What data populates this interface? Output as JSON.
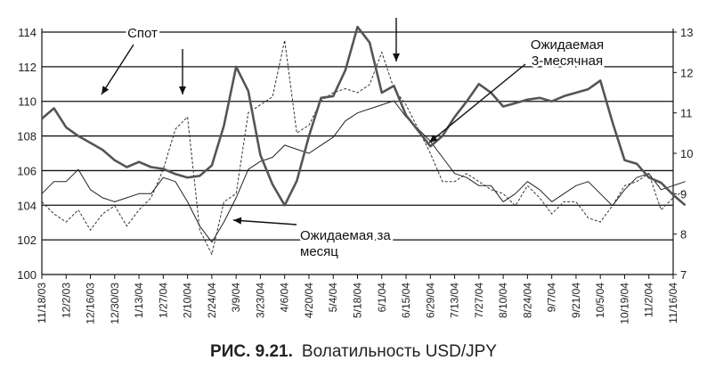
{
  "caption": {
    "figure": "РИС. 9.21.",
    "text": "Волатильность USD/JPY"
  },
  "chart_data": {
    "type": "line",
    "title": "",
    "xlabel": "",
    "ylabel": "",
    "grid": true,
    "y_left": {
      "lim": [
        100,
        114
      ],
      "ticks": [
        100,
        102,
        104,
        106,
        108,
        110,
        112,
        114
      ]
    },
    "y_right": {
      "lim": [
        7,
        13
      ],
      "ticks": [
        7,
        8,
        9,
        10,
        11,
        12,
        13
      ]
    },
    "x_ticks": [
      "11/18/03",
      "12/2/03",
      "12/16/03",
      "12/30/03",
      "1/13/04",
      "1/27/04",
      "2/10/04",
      "2/24/04",
      "3/9/04",
      "3/23/04",
      "4/6/04",
      "4/20/04",
      "5/4/04",
      "5/18/04",
      "6/1/04",
      "6/15/04",
      "6/29/04",
      "7/13/04",
      "7/27/04",
      "8/10/04",
      "8/24/04",
      "9/7/04",
      "9/21/04",
      "10/5/04",
      "10/19/04",
      "11/2/04",
      "11/16/04"
    ],
    "series": [
      {
        "name": "Спот",
        "axis": "left",
        "style": "thick",
        "x": [
          "11/18/03",
          "11/25/03",
          "12/2/03",
          "12/9/03",
          "12/16/03",
          "12/23/03",
          "12/30/03",
          "1/6/04",
          "1/13/04",
          "1/20/04",
          "1/27/04",
          "2/3/04",
          "2/10/04",
          "2/17/04",
          "2/24/04",
          "3/2/04",
          "3/9/04",
          "3/16/04",
          "3/23/04",
          "3/30/04",
          "4/6/04",
          "4/13/04",
          "4/20/04",
          "4/27/04",
          "5/4/04",
          "5/11/04",
          "5/18/04",
          "5/25/04",
          "6/1/04",
          "6/8/04",
          "6/15/04",
          "6/22/04",
          "6/29/04",
          "7/6/04",
          "7/13/04",
          "7/20/04",
          "7/27/04",
          "8/3/04",
          "8/10/04",
          "8/17/04",
          "8/24/04",
          "8/31/04",
          "9/7/04",
          "9/14/04",
          "9/21/04",
          "9/28/04",
          "10/5/04",
          "10/12/04",
          "10/19/04",
          "10/26/04",
          "11/2/04",
          "11/9/04",
          "11/16/04",
          "11/23/04"
        ],
        "values": [
          109.0,
          109.6,
          108.5,
          108.0,
          107.6,
          107.2,
          106.6,
          106.2,
          106.5,
          106.2,
          106.1,
          105.8,
          105.6,
          105.7,
          106.3,
          108.6,
          112.0,
          110.6,
          106.9,
          105.2,
          104.0,
          105.4,
          108.0,
          110.2,
          110.3,
          111.8,
          114.3,
          113.4,
          110.5,
          110.9,
          109.2,
          108.3,
          107.4,
          108.0,
          109.1,
          110.0,
          111.0,
          110.5,
          109.7,
          109.9,
          110.1,
          110.2,
          110.0,
          110.3,
          110.5,
          110.7,
          111.2,
          108.8,
          106.6,
          106.4,
          105.6,
          105.3,
          104.6,
          104.0
        ]
      },
      {
        "name": "Ожидаемая 3-месячная",
        "axis": "right",
        "style": "thin",
        "x": [
          "11/18/03",
          "11/25/03",
          "12/2/03",
          "12/9/03",
          "12/16/03",
          "12/23/03",
          "12/30/03",
          "1/6/04",
          "1/13/04",
          "1/20/04",
          "1/27/04",
          "2/3/04",
          "2/10/04",
          "2/17/04",
          "2/24/04",
          "3/2/04",
          "3/9/04",
          "3/16/04",
          "3/23/04",
          "3/30/04",
          "4/6/04",
          "4/13/04",
          "4/20/04",
          "4/27/04",
          "5/4/04",
          "5/11/04",
          "5/18/04",
          "5/25/04",
          "6/1/04",
          "6/8/04",
          "6/15/04",
          "6/22/04",
          "6/29/04",
          "7/6/04",
          "7/13/04",
          "7/20/04",
          "7/27/04",
          "8/3/04",
          "8/10/04",
          "8/17/04",
          "8/24/04",
          "8/31/04",
          "9/7/04",
          "9/14/04",
          "9/21/04",
          "9/28/04",
          "10/5/04",
          "10/12/04",
          "10/19/04",
          "10/26/04",
          "11/2/04",
          "11/9/04",
          "11/16/04",
          "11/23/04"
        ],
        "values": [
          9.0,
          9.3,
          9.3,
          9.6,
          9.1,
          8.9,
          8.8,
          8.9,
          9.0,
          9.0,
          9.4,
          9.3,
          8.8,
          8.2,
          7.8,
          8.3,
          8.9,
          9.6,
          9.8,
          9.9,
          10.2,
          10.1,
          10.0,
          10.2,
          10.4,
          10.8,
          11.0,
          11.1,
          11.2,
          11.3,
          10.9,
          10.6,
          10.3,
          9.9,
          9.5,
          9.4,
          9.2,
          9.2,
          8.8,
          9.0,
          9.3,
          9.1,
          8.8,
          9.0,
          9.2,
          9.3,
          9.0,
          8.7,
          9.1,
          9.4,
          9.5,
          9.1,
          9.2,
          9.3
        ]
      },
      {
        "name": "Ожидаемая за месяц",
        "axis": "right",
        "style": "dashed",
        "x": [
          "11/18/03",
          "11/25/03",
          "12/2/03",
          "12/9/03",
          "12/16/03",
          "12/23/03",
          "12/30/03",
          "1/6/04",
          "1/13/04",
          "1/20/04",
          "1/27/04",
          "2/3/04",
          "2/10/04",
          "2/17/04",
          "2/24/04",
          "3/2/04",
          "3/9/04",
          "3/16/04",
          "3/23/04",
          "3/30/04",
          "4/6/04",
          "4/13/04",
          "4/20/04",
          "4/27/04",
          "5/4/04",
          "5/11/04",
          "5/18/04",
          "5/25/04",
          "6/1/04",
          "6/8/04",
          "6/15/04",
          "6/22/04",
          "6/29/04",
          "7/6/04",
          "7/13/04",
          "7/20/04",
          "7/27/04",
          "8/3/04",
          "8/10/04",
          "8/17/04",
          "8/24/04",
          "8/31/04",
          "9/7/04",
          "9/14/04",
          "9/21/04",
          "9/28/04",
          "10/5/04",
          "10/12/04",
          "10/19/04",
          "10/26/04",
          "11/2/04",
          "11/9/04",
          "11/16/04",
          "11/23/04"
        ],
        "values": [
          8.8,
          8.5,
          8.3,
          8.6,
          8.1,
          8.5,
          8.7,
          8.2,
          8.6,
          8.9,
          9.6,
          10.6,
          10.9,
          8.1,
          7.5,
          8.8,
          9.0,
          11.0,
          11.2,
          11.4,
          12.8,
          10.5,
          10.7,
          11.3,
          11.5,
          11.6,
          11.5,
          11.7,
          12.5,
          11.6,
          11.2,
          10.6,
          10.0,
          9.3,
          9.3,
          9.5,
          9.3,
          9.1,
          9.0,
          8.7,
          9.2,
          8.9,
          8.5,
          8.8,
          8.8,
          8.4,
          8.3,
          8.7,
          9.2,
          9.3,
          9.5,
          8.6,
          8.9,
          9.1
        ]
      }
    ],
    "annotations": [
      {
        "text": "Спот",
        "lines": [
          "Спот"
        ]
      },
      {
        "text": "Ожидаемая 3-месячная",
        "lines": [
          "Ожидаемая",
          "3-месячная"
        ]
      },
      {
        "text": "Ожидаемая за месяц",
        "lines": [
          "Ожидаемая за",
          "месяц"
        ]
      }
    ]
  }
}
